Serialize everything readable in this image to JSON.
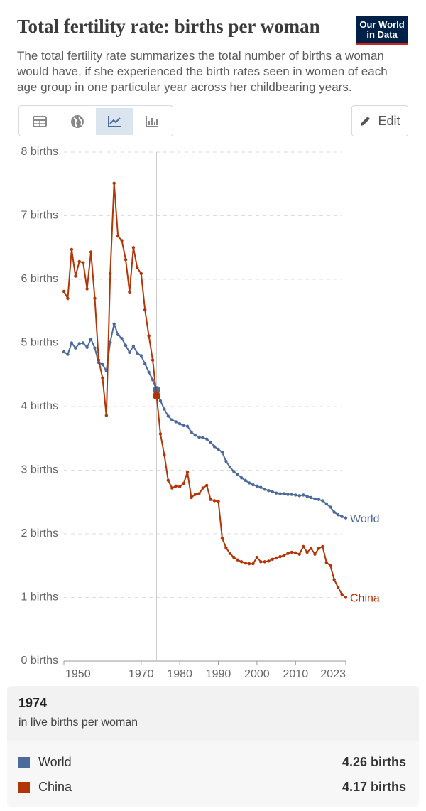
{
  "header": {
    "title": "Total fertility rate: births per woman",
    "logo": [
      "Our World",
      "in Data"
    ],
    "description": [
      "The ",
      "total fertility rate",
      " summarizes the total number of births a woman would have, if she experienced the birth rates seen in women of each age group in one particular year across her childbearing years."
    ],
    "edit": "Edit"
  },
  "chart_data": {
    "type": "line",
    "x": [
      1950,
      1951,
      1952,
      1953,
      1954,
      1955,
      1956,
      1957,
      1958,
      1959,
      1960,
      1961,
      1962,
      1963,
      1964,
      1965,
      1966,
      1967,
      1968,
      1969,
      1970,
      1971,
      1972,
      1973,
      1974,
      1975,
      1976,
      1977,
      1978,
      1979,
      1980,
      1981,
      1982,
      1983,
      1984,
      1985,
      1986,
      1987,
      1988,
      1989,
      1990,
      1991,
      1992,
      1993,
      1994,
      1995,
      1996,
      1997,
      1998,
      1999,
      2000,
      2001,
      2002,
      2003,
      2004,
      2005,
      2006,
      2007,
      2008,
      2009,
      2010,
      2011,
      2012,
      2013,
      2014,
      2015,
      2016,
      2017,
      2018,
      2019,
      2020,
      2021,
      2022,
      2023
    ],
    "series": [
      {
        "name": "World",
        "color": "#4c6a9c",
        "values": [
          4.86,
          4.82,
          5.0,
          4.92,
          4.99,
          5.0,
          4.93,
          5.06,
          4.92,
          4.69,
          4.66,
          4.56,
          5.01,
          5.3,
          5.13,
          5.07,
          4.96,
          4.85,
          4.95,
          4.84,
          4.8,
          4.67,
          4.54,
          4.42,
          4.26,
          4.09,
          3.96,
          3.85,
          3.79,
          3.76,
          3.73,
          3.7,
          3.69,
          3.6,
          3.55,
          3.52,
          3.51,
          3.49,
          3.44,
          3.37,
          3.33,
          3.28,
          3.14,
          3.05,
          2.98,
          2.93,
          2.88,
          2.84,
          2.8,
          2.77,
          2.75,
          2.73,
          2.7,
          2.68,
          2.66,
          2.64,
          2.63,
          2.63,
          2.62,
          2.62,
          2.61,
          2.6,
          2.61,
          2.59,
          2.57,
          2.55,
          2.54,
          2.52,
          2.47,
          2.42,
          2.34,
          2.3,
          2.27,
          2.25
        ]
      },
      {
        "name": "China",
        "color": "#b13507",
        "values": [
          5.81,
          5.7,
          6.47,
          6.05,
          6.28,
          6.26,
          5.85,
          6.43,
          5.7,
          4.73,
          4.45,
          3.86,
          6.09,
          7.51,
          6.68,
          6.61,
          6.31,
          5.8,
          6.5,
          6.18,
          6.09,
          5.52,
          5.11,
          4.73,
          4.17,
          3.57,
          3.24,
          2.84,
          2.72,
          2.75,
          2.74,
          2.79,
          2.97,
          2.57,
          2.62,
          2.63,
          2.72,
          2.76,
          2.54,
          2.52,
          2.51,
          1.93,
          1.78,
          1.69,
          1.63,
          1.59,
          1.56,
          1.54,
          1.53,
          1.53,
          1.63,
          1.56,
          1.56,
          1.57,
          1.6,
          1.62,
          1.64,
          1.66,
          1.69,
          1.71,
          1.7,
          1.68,
          1.8,
          1.71,
          1.77,
          1.68,
          1.77,
          1.8,
          1.55,
          1.5,
          1.28,
          1.16,
          1.05,
          1.0
        ]
      }
    ],
    "xlim": [
      1950,
      2023
    ],
    "xticks": [
      1950,
      1970,
      1980,
      1990,
      2000,
      2010,
      2023
    ],
    "ylim": [
      0,
      8
    ],
    "yticks": [
      {
        "value": 0,
        "label": "0 births"
      },
      {
        "value": 1,
        "label": "1 births"
      },
      {
        "value": 2,
        "label": "2 births"
      },
      {
        "value": 3,
        "label": "3 births"
      },
      {
        "value": 4,
        "label": "4 births"
      },
      {
        "value": 5,
        "label": "5 births"
      },
      {
        "value": 6,
        "label": "6 births"
      },
      {
        "value": 7,
        "label": "7 births"
      },
      {
        "value": 8,
        "label": "8 births"
      }
    ],
    "grid": true,
    "highlight_x": 1974,
    "tooltip": {
      "unit": "in live births per woman",
      "value_labels": [
        "4.26 births",
        "4.17 births"
      ]
    }
  }
}
